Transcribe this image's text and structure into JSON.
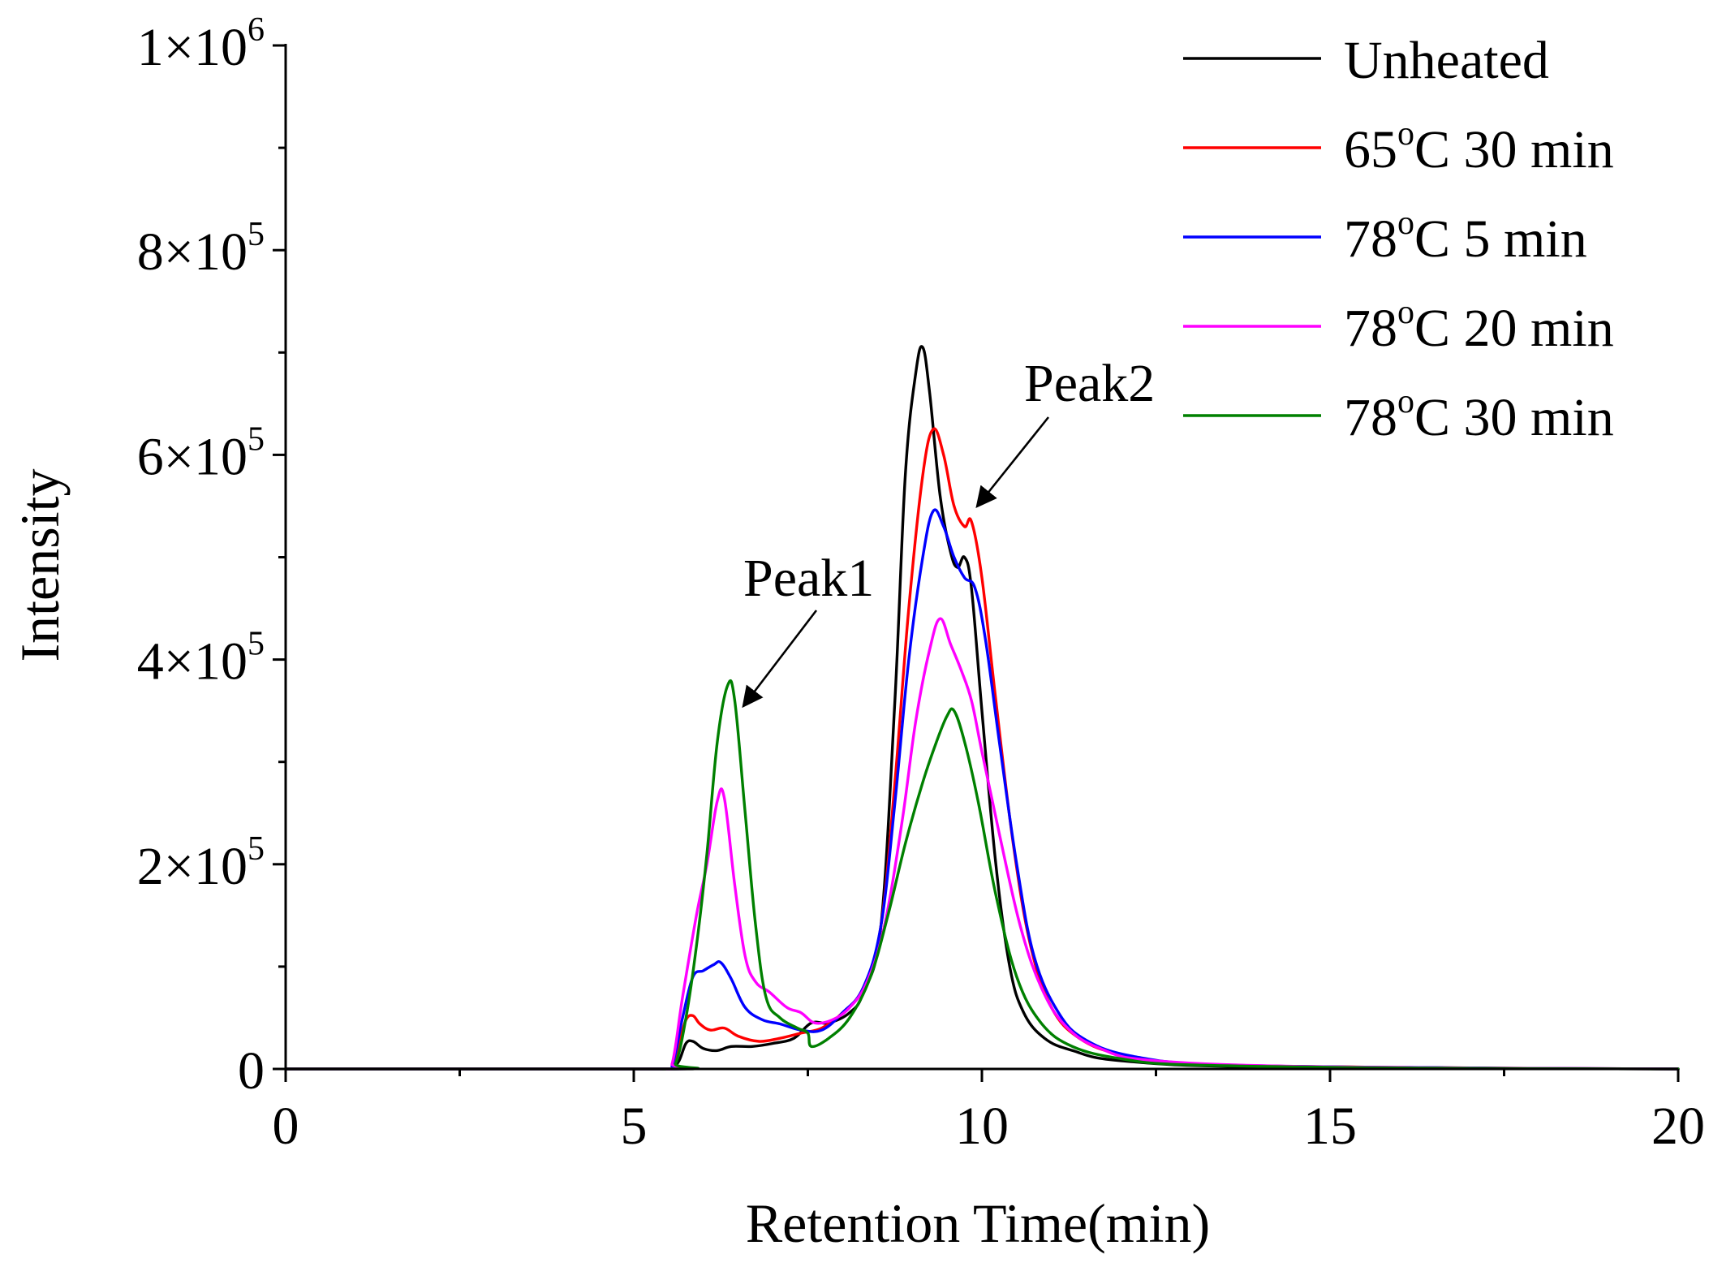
{
  "chart_data": {
    "type": "line",
    "title": "",
    "xlabel": "Retention Time(min)",
    "ylabel": "Intensity",
    "xlim": [
      0,
      20
    ],
    "ylim": [
      0,
      1000000
    ],
    "x_ticks": [
      {
        "value": 0,
        "label": "0"
      },
      {
        "value": 5,
        "label": "5"
      },
      {
        "value": 10,
        "label": "10"
      },
      {
        "value": 15,
        "label": "15"
      },
      {
        "value": 20,
        "label": "20"
      }
    ],
    "y_ticks": [
      {
        "value": 0,
        "base": "0",
        "exp": ""
      },
      {
        "value": 200000,
        "base": "2×10",
        "exp": "5"
      },
      {
        "value": 400000,
        "base": "4×10",
        "exp": "5"
      },
      {
        "value": 600000,
        "base": "6×10",
        "exp": "5"
      },
      {
        "value": 800000,
        "base": "8×10",
        "exp": "5"
      },
      {
        "value": 1000000,
        "base": "1×10",
        "exp": "6"
      }
    ],
    "grid": false,
    "legend_position": "top-right",
    "series": [
      {
        "name": "Unheated",
        "label_main": "Unheated",
        "label_sup": "",
        "label_tail": "",
        "color": "#000000",
        "points": [
          [
            0,
            0
          ],
          [
            5.4,
            0
          ],
          [
            5.55,
            1000
          ],
          [
            5.65,
            8000
          ],
          [
            5.75,
            25000
          ],
          [
            5.85,
            27000
          ],
          [
            6.0,
            20000
          ],
          [
            6.2,
            18000
          ],
          [
            6.4,
            22000
          ],
          [
            6.7,
            22000
          ],
          [
            7.0,
            25000
          ],
          [
            7.3,
            30000
          ],
          [
            7.55,
            45000
          ],
          [
            7.8,
            45000
          ],
          [
            8.1,
            55000
          ],
          [
            8.3,
            75000
          ],
          [
            8.55,
            140000
          ],
          [
            8.75,
            360000
          ],
          [
            8.9,
            580000
          ],
          [
            9.05,
            680000
          ],
          [
            9.15,
            705000
          ],
          [
            9.25,
            660000
          ],
          [
            9.4,
            560000
          ],
          [
            9.55,
            505000
          ],
          [
            9.65,
            490000
          ],
          [
            9.75,
            500000
          ],
          [
            9.85,
            470000
          ],
          [
            10.0,
            350000
          ],
          [
            10.2,
            200000
          ],
          [
            10.4,
            100000
          ],
          [
            10.6,
            55000
          ],
          [
            10.9,
            30000
          ],
          [
            11.3,
            18000
          ],
          [
            12.0,
            8000
          ],
          [
            14.0,
            2000
          ],
          [
            20,
            0
          ]
        ]
      },
      {
        "name": "65oC 30 min",
        "label_main": "65",
        "label_sup": "o",
        "label_tail": "C 30 min",
        "color": "#ff0000",
        "points": [
          [
            0,
            0
          ],
          [
            5.4,
            0
          ],
          [
            5.55,
            2000
          ],
          [
            5.65,
            25000
          ],
          [
            5.75,
            48000
          ],
          [
            5.85,
            52000
          ],
          [
            5.95,
            44000
          ],
          [
            6.1,
            38000
          ],
          [
            6.3,
            40000
          ],
          [
            6.5,
            32000
          ],
          [
            6.8,
            27000
          ],
          [
            7.1,
            30000
          ],
          [
            7.4,
            35000
          ],
          [
            7.7,
            40000
          ],
          [
            8.0,
            55000
          ],
          [
            8.3,
            80000
          ],
          [
            8.55,
            140000
          ],
          [
            8.75,
            280000
          ],
          [
            8.95,
            450000
          ],
          [
            9.15,
            580000
          ],
          [
            9.3,
            625000
          ],
          [
            9.45,
            600000
          ],
          [
            9.6,
            550000
          ],
          [
            9.75,
            530000
          ],
          [
            9.85,
            535000
          ],
          [
            10.0,
            480000
          ],
          [
            10.2,
            360000
          ],
          [
            10.45,
            220000
          ],
          [
            10.7,
            120000
          ],
          [
            11.0,
            60000
          ],
          [
            11.4,
            30000
          ],
          [
            12.0,
            14000
          ],
          [
            13.0,
            5000
          ],
          [
            16.0,
            1500
          ],
          [
            20,
            0
          ]
        ]
      },
      {
        "name": "78oC 5 min",
        "label_main": "78",
        "label_sup": "o",
        "label_tail": "C 5 min",
        "color": "#0000ff",
        "points": [
          [
            0,
            0
          ],
          [
            5.4,
            0
          ],
          [
            5.55,
            3000
          ],
          [
            5.7,
            50000
          ],
          [
            5.85,
            90000
          ],
          [
            6.0,
            96000
          ],
          [
            6.15,
            102000
          ],
          [
            6.25,
            104000
          ],
          [
            6.4,
            88000
          ],
          [
            6.6,
            60000
          ],
          [
            6.85,
            48000
          ],
          [
            7.1,
            44000
          ],
          [
            7.4,
            38000
          ],
          [
            7.7,
            38000
          ],
          [
            8.0,
            55000
          ],
          [
            8.3,
            80000
          ],
          [
            8.55,
            140000
          ],
          [
            8.75,
            260000
          ],
          [
            8.95,
            400000
          ],
          [
            9.15,
            500000
          ],
          [
            9.3,
            545000
          ],
          [
            9.45,
            530000
          ],
          [
            9.6,
            500000
          ],
          [
            9.75,
            480000
          ],
          [
            9.9,
            470000
          ],
          [
            10.05,
            420000
          ],
          [
            10.25,
            320000
          ],
          [
            10.5,
            200000
          ],
          [
            10.75,
            110000
          ],
          [
            11.1,
            55000
          ],
          [
            11.5,
            28000
          ],
          [
            12.2,
            12000
          ],
          [
            13.5,
            4000
          ],
          [
            17.0,
            1000
          ],
          [
            20,
            0
          ]
        ]
      },
      {
        "name": "78oC 20 min",
        "label_main": "78",
        "label_sup": "o",
        "label_tail": "C 20 min",
        "color": "#ff00ff",
        "points": [
          [
            0,
            0
          ],
          [
            5.4,
            0
          ],
          [
            5.55,
            5000
          ],
          [
            5.7,
            70000
          ],
          [
            5.9,
            150000
          ],
          [
            6.05,
            200000
          ],
          [
            6.2,
            262000
          ],
          [
            6.3,
            265000
          ],
          [
            6.45,
            180000
          ],
          [
            6.6,
            110000
          ],
          [
            6.75,
            85000
          ],
          [
            6.95,
            75000
          ],
          [
            7.2,
            60000
          ],
          [
            7.4,
            55000
          ],
          [
            7.6,
            45000
          ],
          [
            7.85,
            48000
          ],
          [
            8.1,
            60000
          ],
          [
            8.35,
            85000
          ],
          [
            8.6,
            140000
          ],
          [
            8.85,
            240000
          ],
          [
            9.05,
            340000
          ],
          [
            9.25,
            410000
          ],
          [
            9.4,
            440000
          ],
          [
            9.55,
            415000
          ],
          [
            9.7,
            390000
          ],
          [
            9.85,
            360000
          ],
          [
            10.0,
            310000
          ],
          [
            10.25,
            230000
          ],
          [
            10.55,
            140000
          ],
          [
            10.85,
            80000
          ],
          [
            11.2,
            42000
          ],
          [
            11.7,
            20000
          ],
          [
            12.5,
            8000
          ],
          [
            15.0,
            2000
          ],
          [
            20,
            0
          ]
        ]
      },
      {
        "name": "78oC 30 min",
        "label_main": "78",
        "label_sup": "o",
        "label_tail": "C 30 min",
        "color": "#008000",
        "points": [
          [
            0,
            0
          ],
          [
            5.45,
            0
          ],
          [
            5.6,
            5000
          ],
          [
            5.75,
            50000
          ],
          [
            5.9,
            120000
          ],
          [
            6.05,
            210000
          ],
          [
            6.2,
            320000
          ],
          [
            6.35,
            375000
          ],
          [
            6.45,
            360000
          ],
          [
            6.6,
            250000
          ],
          [
            6.75,
            140000
          ],
          [
            6.9,
            70000
          ],
          [
            7.1,
            50000
          ],
          [
            7.35,
            40000
          ],
          [
            7.5,
            35000
          ],
          [
            7.55,
            22000
          ],
          [
            7.8,
            30000
          ],
          [
            8.1,
            50000
          ],
          [
            8.4,
            90000
          ],
          [
            8.65,
            150000
          ],
          [
            8.9,
            220000
          ],
          [
            9.15,
            280000
          ],
          [
            9.35,
            320000
          ],
          [
            9.5,
            345000
          ],
          [
            9.6,
            350000
          ],
          [
            9.75,
            320000
          ],
          [
            9.95,
            260000
          ],
          [
            10.2,
            170000
          ],
          [
            10.5,
            90000
          ],
          [
            10.85,
            45000
          ],
          [
            11.3,
            22000
          ],
          [
            12.0,
            10000
          ],
          [
            13.0,
            4000
          ],
          [
            16.0,
            1000
          ],
          [
            20,
            0
          ]
        ]
      }
    ],
    "annotations": [
      {
        "text": "Peak1",
        "points_to": [
          6.4,
          350000
        ]
      },
      {
        "text": "Peak2",
        "points_to": [
          9.9,
          540000
        ]
      }
    ]
  }
}
